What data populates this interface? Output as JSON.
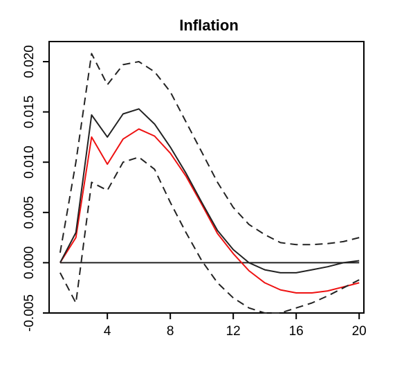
{
  "chart_data": {
    "type": "line",
    "title": "Inflation",
    "xlabel": "",
    "ylabel": "",
    "xlim": [
      0.3,
      20.3
    ],
    "ylim": [
      -0.005,
      0.022
    ],
    "x_ticks": [
      4,
      8,
      12,
      16,
      20
    ],
    "x_tick_labels": [
      "4",
      "8",
      "12",
      "16",
      "20"
    ],
    "y_ticks": [
      -0.005,
      0.0,
      0.005,
      0.01,
      0.015,
      0.02
    ],
    "y_tick_labels": [
      "-0.005",
      "0.000",
      "0.005",
      "0.010",
      "0.015",
      "0.020"
    ],
    "grid": false,
    "legend": "none",
    "x": [
      1,
      2,
      3,
      4,
      5,
      6,
      7,
      8,
      9,
      10,
      11,
      12,
      13,
      14,
      15,
      16,
      17,
      18,
      19,
      20
    ],
    "series": [
      {
        "values": [
          0.0,
          0.0025,
          0.0125,
          0.0098,
          0.0123,
          0.0133,
          0.0126,
          0.0109,
          0.0086,
          0.0058,
          0.0029,
          0.0009,
          -0.0008,
          -0.002,
          -0.0027,
          -0.003,
          -0.003,
          -0.0028,
          -0.0024,
          -0.002
        ],
        "color": "#ee1111",
        "style": "solid"
      },
      {
        "values": [
          0.0,
          0.003,
          0.0147,
          0.0125,
          0.0148,
          0.0153,
          0.0138,
          0.0115,
          0.0089,
          0.006,
          0.0032,
          0.0013,
          0.0,
          -0.0007,
          -0.001,
          -0.001,
          -0.0007,
          -0.0004,
          0.0,
          0.0002
        ],
        "color": "#222222",
        "style": "solid"
      },
      {
        "values": [
          0.001,
          0.01,
          0.0208,
          0.0177,
          0.0197,
          0.02,
          0.019,
          0.017,
          0.014,
          0.011,
          0.008,
          0.0055,
          0.0038,
          0.0028,
          0.002,
          0.0018,
          0.0018,
          0.0019,
          0.0021,
          0.0025
        ],
        "color": "#222222",
        "style": "dashed"
      },
      {
        "values": [
          -0.001,
          -0.004,
          0.008,
          0.0072,
          0.01,
          0.0105,
          0.0093,
          0.006,
          0.003,
          0.0002,
          -0.002,
          -0.0035,
          -0.0045,
          -0.005,
          -0.005,
          -0.0045,
          -0.004,
          -0.0033,
          -0.0025,
          -0.0017
        ],
        "color": "#222222",
        "style": "dashed"
      }
    ],
    "reference_line": {
      "y": 0.0,
      "color": "#222222"
    }
  }
}
